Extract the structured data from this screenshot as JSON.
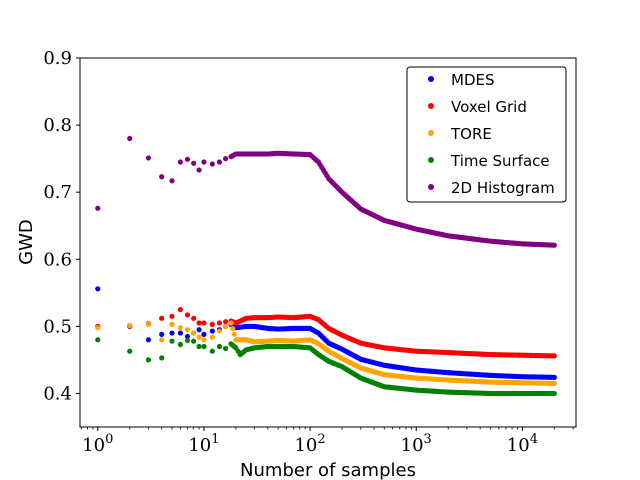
{
  "chart_data": {
    "type": "scatter",
    "title": "",
    "xlabel": "Number of samples",
    "ylabel": "GWD",
    "xscale": "log",
    "xlim": [
      0.68,
      32000
    ],
    "ylim": [
      0.35,
      0.9
    ],
    "grid": false,
    "legend_position": "top-right",
    "x_ticks": [
      {
        "value": 1,
        "base": "10",
        "exp": "0"
      },
      {
        "value": 10,
        "base": "10",
        "exp": "1"
      },
      {
        "value": 100,
        "base": "10",
        "exp": "2"
      },
      {
        "value": 1000,
        "base": "10",
        "exp": "3"
      },
      {
        "value": 10000,
        "base": "10",
        "exp": "4"
      }
    ],
    "y_ticks": [
      {
        "value": 0.4,
        "label": "0.4"
      },
      {
        "value": 0.5,
        "label": "0.5"
      },
      {
        "value": 0.6,
        "label": "0.6"
      },
      {
        "value": 0.7,
        "label": "0.7"
      },
      {
        "value": 0.8,
        "label": "0.8"
      },
      {
        "value": 0.9,
        "label": "0.9"
      }
    ],
    "series": [
      {
        "name": "MDES",
        "color": "#0000ff",
        "points": [
          [
            1,
            0.556
          ],
          [
            2,
            0.5
          ],
          [
            3,
            0.48
          ],
          [
            4,
            0.488
          ],
          [
            5,
            0.49
          ],
          [
            6,
            0.49
          ],
          [
            7,
            0.485
          ],
          [
            8,
            0.49
          ],
          [
            9,
            0.495
          ],
          [
            10,
            0.488
          ],
          [
            12,
            0.493
          ],
          [
            14,
            0.495
          ],
          [
            16,
            0.5
          ],
          [
            18,
            0.503
          ],
          [
            20,
            0.498
          ],
          [
            25,
            0.5
          ],
          [
            30,
            0.5
          ],
          [
            40,
            0.497
          ],
          [
            50,
            0.496
          ],
          [
            70,
            0.497
          ],
          [
            100,
            0.497
          ],
          [
            120,
            0.49
          ],
          [
            150,
            0.475
          ],
          [
            200,
            0.466
          ],
          [
            300,
            0.451
          ],
          [
            500,
            0.442
          ],
          [
            1000,
            0.435
          ],
          [
            2000,
            0.431
          ],
          [
            5000,
            0.427
          ],
          [
            10000,
            0.425
          ],
          [
            20000,
            0.424
          ]
        ]
      },
      {
        "name": "Voxel Grid",
        "color": "#ff0000",
        "points": [
          [
            1,
            0.5
          ],
          [
            2,
            0.501
          ],
          [
            3,
            0.504
          ],
          [
            4,
            0.512
          ],
          [
            5,
            0.515
          ],
          [
            6,
            0.525
          ],
          [
            7,
            0.517
          ],
          [
            8,
            0.512
          ],
          [
            9,
            0.505
          ],
          [
            10,
            0.505
          ],
          [
            12,
            0.503
          ],
          [
            14,
            0.505
          ],
          [
            16,
            0.507
          ],
          [
            18,
            0.508
          ],
          [
            20,
            0.505
          ],
          [
            25,
            0.512
          ],
          [
            30,
            0.513
          ],
          [
            40,
            0.513
          ],
          [
            50,
            0.514
          ],
          [
            70,
            0.513
          ],
          [
            100,
            0.515
          ],
          [
            120,
            0.51
          ],
          [
            150,
            0.497
          ],
          [
            200,
            0.487
          ],
          [
            300,
            0.475
          ],
          [
            500,
            0.468
          ],
          [
            1000,
            0.463
          ],
          [
            2000,
            0.461
          ],
          [
            5000,
            0.458
          ],
          [
            10000,
            0.457
          ],
          [
            20000,
            0.456
          ]
        ]
      },
      {
        "name": "TORE",
        "color": "#ffa500",
        "points": [
          [
            1,
            0.498
          ],
          [
            2,
            0.501
          ],
          [
            3,
            0.503
          ],
          [
            4,
            0.48
          ],
          [
            5,
            0.503
          ],
          [
            6,
            0.498
          ],
          [
            7,
            0.495
          ],
          [
            8,
            0.49
          ],
          [
            9,
            0.484
          ],
          [
            10,
            0.48
          ],
          [
            12,
            0.484
          ],
          [
            14,
            0.493
          ],
          [
            16,
            0.5
          ],
          [
            18,
            0.505
          ],
          [
            20,
            0.48
          ],
          [
            25,
            0.48
          ],
          [
            30,
            0.477
          ],
          [
            40,
            0.478
          ],
          [
            50,
            0.479
          ],
          [
            70,
            0.478
          ],
          [
            100,
            0.48
          ],
          [
            120,
            0.474
          ],
          [
            150,
            0.463
          ],
          [
            200,
            0.452
          ],
          [
            300,
            0.438
          ],
          [
            500,
            0.428
          ],
          [
            1000,
            0.423
          ],
          [
            2000,
            0.42
          ],
          [
            5000,
            0.417
          ],
          [
            10000,
            0.416
          ],
          [
            20000,
            0.415
          ]
        ]
      },
      {
        "name": "Time Surface",
        "color": "#008000",
        "points": [
          [
            1,
            0.48
          ],
          [
            2,
            0.463
          ],
          [
            3,
            0.45
          ],
          [
            4,
            0.453
          ],
          [
            5,
            0.478
          ],
          [
            6,
            0.473
          ],
          [
            7,
            0.479
          ],
          [
            8,
            0.478
          ],
          [
            9,
            0.47
          ],
          [
            10,
            0.47
          ],
          [
            12,
            0.463
          ],
          [
            14,
            0.47
          ],
          [
            16,
            0.467
          ],
          [
            18,
            0.474
          ],
          [
            20,
            0.468
          ],
          [
            22,
            0.458
          ],
          [
            25,
            0.465
          ],
          [
            30,
            0.468
          ],
          [
            40,
            0.47
          ],
          [
            50,
            0.47
          ],
          [
            70,
            0.47
          ],
          [
            100,
            0.468
          ],
          [
            120,
            0.458
          ],
          [
            150,
            0.448
          ],
          [
            200,
            0.44
          ],
          [
            300,
            0.423
          ],
          [
            500,
            0.41
          ],
          [
            1000,
            0.405
          ],
          [
            2000,
            0.402
          ],
          [
            5000,
            0.4
          ],
          [
            10000,
            0.4
          ],
          [
            20000,
            0.4
          ]
        ]
      },
      {
        "name": "2D Histogram",
        "color": "#800080",
        "points": [
          [
            1,
            0.676
          ],
          [
            2,
            0.78
          ],
          [
            3,
            0.751
          ],
          [
            4,
            0.723
          ],
          [
            5,
            0.717
          ],
          [
            6,
            0.745
          ],
          [
            7,
            0.749
          ],
          [
            8,
            0.743
          ],
          [
            9,
            0.733
          ],
          [
            10,
            0.745
          ],
          [
            12,
            0.742
          ],
          [
            14,
            0.745
          ],
          [
            16,
            0.75
          ],
          [
            18,
            0.753
          ],
          [
            20,
            0.757
          ],
          [
            25,
            0.757
          ],
          [
            30,
            0.757
          ],
          [
            40,
            0.757
          ],
          [
            50,
            0.758
          ],
          [
            70,
            0.757
          ],
          [
            100,
            0.756
          ],
          [
            120,
            0.745
          ],
          [
            150,
            0.72
          ],
          [
            200,
            0.7
          ],
          [
            300,
            0.675
          ],
          [
            500,
            0.658
          ],
          [
            1000,
            0.645
          ],
          [
            2000,
            0.635
          ],
          [
            5000,
            0.627
          ],
          [
            10000,
            0.623
          ],
          [
            20000,
            0.621
          ]
        ]
      }
    ]
  }
}
